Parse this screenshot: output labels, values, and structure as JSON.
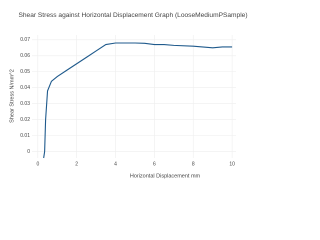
{
  "chart_data": {
    "type": "line",
    "title": "Shear Stress against Horizontal Displacement Graph (LooseMediumPSample)",
    "x_label": "Horizontal Displacement mm",
    "y_label": "Shear Stress N/mm^2",
    "xlim": [
      -0.3,
      10.2
    ],
    "ylim": [
      -0.004,
      0.073
    ],
    "xticks": [
      0,
      2,
      4,
      6,
      8,
      10
    ],
    "yticks": [
      0,
      0.01,
      0.02,
      0.03,
      0.04,
      0.05,
      0.06,
      0.07
    ],
    "grid": true,
    "series": [
      {
        "name": "Shear Stress",
        "color": "#1f5a8c",
        "x": [
          0.3,
          0.35,
          0.4,
          0.5,
          0.7,
          1.0,
          1.5,
          2.0,
          2.5,
          3.0,
          3.5,
          4.0,
          5.0,
          5.5,
          6.0,
          6.5,
          7.0,
          8.0,
          9.0,
          9.5,
          10.0
        ],
        "values": [
          -0.004,
          0.0,
          0.02,
          0.038,
          0.044,
          0.047,
          0.051,
          0.055,
          0.059,
          0.063,
          0.067,
          0.068,
          0.068,
          0.0678,
          0.067,
          0.067,
          0.0665,
          0.066,
          0.065,
          0.0655,
          0.0655
        ]
      }
    ]
  }
}
